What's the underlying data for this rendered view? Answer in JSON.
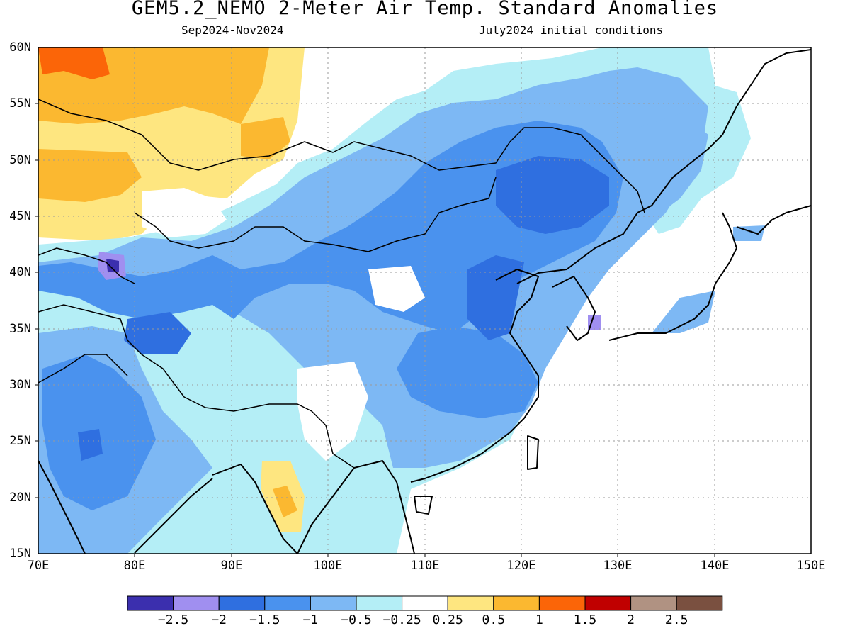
{
  "header": {
    "title": "GEM5.2_NEMO 2-Meter Air Temp. Standard Anomalies",
    "period": "Sep2024-Nov2024",
    "init": "July2024 initial conditions"
  },
  "axes": {
    "lat_labels": [
      "60N",
      "55N",
      "50N",
      "45N",
      "40N",
      "35N",
      "30N",
      "25N",
      "20N",
      "15N"
    ],
    "lon_labels": [
      "70E",
      "80E",
      "90E",
      "100E",
      "110E",
      "120E",
      "130E",
      "140E",
      "150E"
    ]
  },
  "colorbar": {
    "colors": [
      "#3b2fae",
      "#a08ff0",
      "#2f6fe0",
      "#4a92ee",
      "#7db8f4",
      "#b4eef6",
      "#ffffff",
      "#fee680",
      "#fbb830",
      "#fb6508",
      "#c00000",
      "#b09282",
      "#7a5040"
    ],
    "labels": [
      "-2.5",
      "-2",
      "-1.5",
      "-1",
      "-0.5",
      "-0.25",
      "0.25",
      "0.5",
      "1",
      "1.5",
      "2",
      "2.5"
    ]
  },
  "map": {
    "region": "East Asia",
    "lat_range": [
      15,
      60
    ],
    "lon_range": [
      70,
      150
    ],
    "grid": "dotted",
    "palette": {
      "very_light_blue": "#b4eef6",
      "light_blue": "#7db8f4",
      "blue": "#4a92ee",
      "strong_blue": "#2f6fe0",
      "lavender": "#a08ff0",
      "dark_purple": "#3b2fae",
      "yellow": "#fee680",
      "orange": "#fbb830",
      "dark_orange": "#fb6508"
    }
  }
}
